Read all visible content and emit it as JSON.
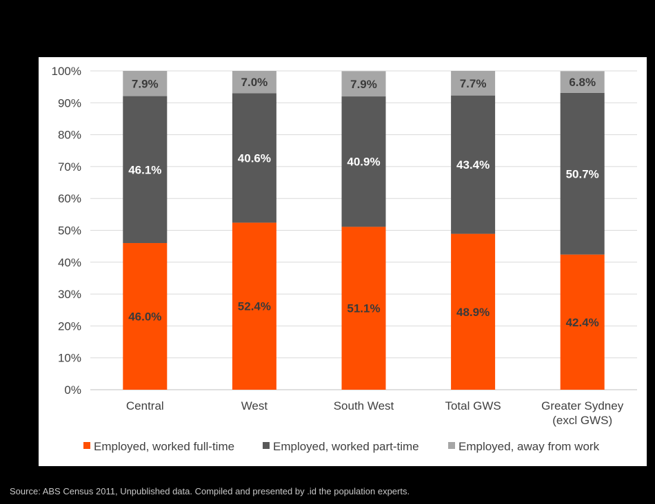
{
  "chart_data": {
    "type": "bar",
    "stacked": true,
    "categories": [
      [
        "Central"
      ],
      [
        "West"
      ],
      [
        "South West"
      ],
      [
        "Total GWS"
      ],
      [
        "Greater Sydney",
        "(excl GWS)"
      ]
    ],
    "series": [
      {
        "name": "Employed, worked full-time",
        "color": "#ff4f00",
        "label_color": "#3a3a3a",
        "values": [
          46.0,
          52.4,
          51.1,
          48.9,
          42.4
        ],
        "labels": [
          "46.0%",
          "52.4%",
          "51.1%",
          "48.9%",
          "42.4%"
        ]
      },
      {
        "name": "Employed, worked part-time",
        "color": "#595959",
        "label_color": "#ffffff",
        "values": [
          46.1,
          40.6,
          40.9,
          43.4,
          50.7
        ],
        "labels": [
          "46.1%",
          "40.6%",
          "40.9%",
          "43.4%",
          "50.7%"
        ]
      },
      {
        "name": "Employed, away from work",
        "color": "#a6a6a6",
        "label_color": "#3a3a3a",
        "values": [
          7.9,
          7.0,
          7.9,
          7.7,
          6.8
        ],
        "labels": [
          "7.9%",
          "7.0%",
          "7.9%",
          "7.7%",
          "6.8%"
        ]
      }
    ],
    "y_ticks": [
      "0%",
      "10%",
      "20%",
      "30%",
      "40%",
      "50%",
      "60%",
      "70%",
      "80%",
      "90%",
      "100%"
    ],
    "ylim": [
      0,
      100
    ],
    "grid": true,
    "legend": "bottom"
  },
  "source_note": "Source: ABS Census 2011, Unpublished data. Compiled and presented by .id the population experts."
}
